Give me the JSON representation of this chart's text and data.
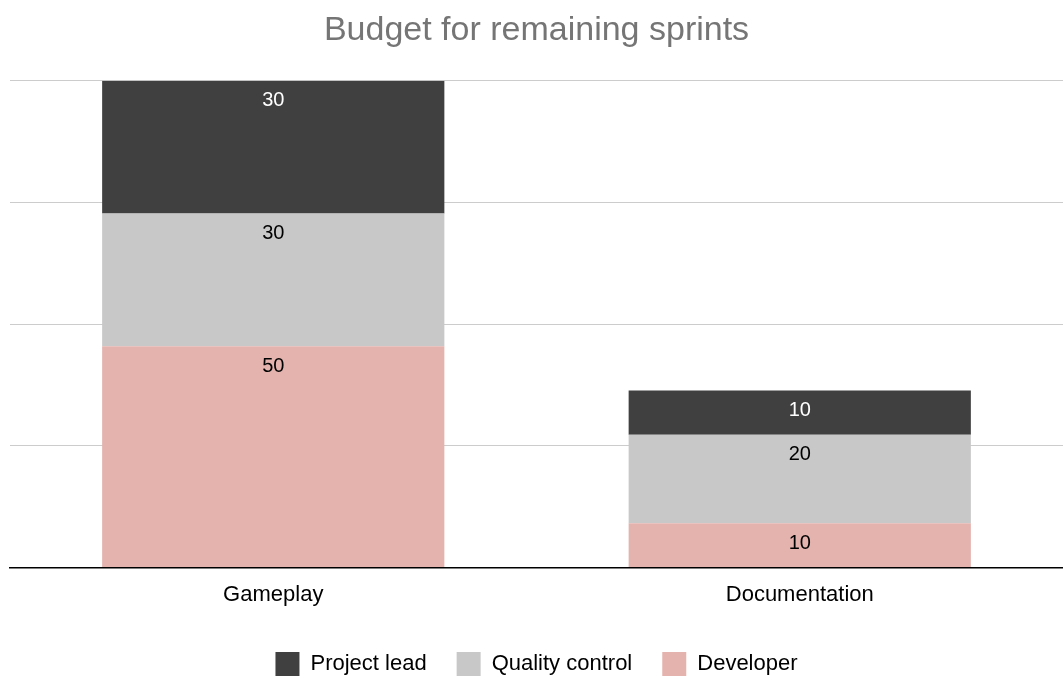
{
  "chart_data": {
    "type": "bar",
    "title": "Budget for remaining sprints",
    "stacked": true,
    "categories": [
      "Gameplay",
      "Documentation"
    ],
    "series": [
      {
        "name": "Developer",
        "color": "#e4b3ae",
        "values": [
          50,
          10
        ]
      },
      {
        "name": "Quality control",
        "color": "#c8c8c8",
        "values": [
          30,
          20
        ]
      },
      {
        "name": "Project lead",
        "color": "#404040",
        "values": [
          30,
          10
        ]
      }
    ],
    "ylim": [
      0,
      110
    ],
    "yticks": [
      {
        "value": 0,
        "label": null
      },
      {
        "value": 27.5,
        "label": null
      },
      {
        "value": 55,
        "label": null
      },
      {
        "value": 82.5,
        "label": null
      },
      {
        "value": 110,
        "label": null
      }
    ],
    "tick_labels": "x",
    "grid": "y",
    "legend": "bottom",
    "data_labels": true
  }
}
